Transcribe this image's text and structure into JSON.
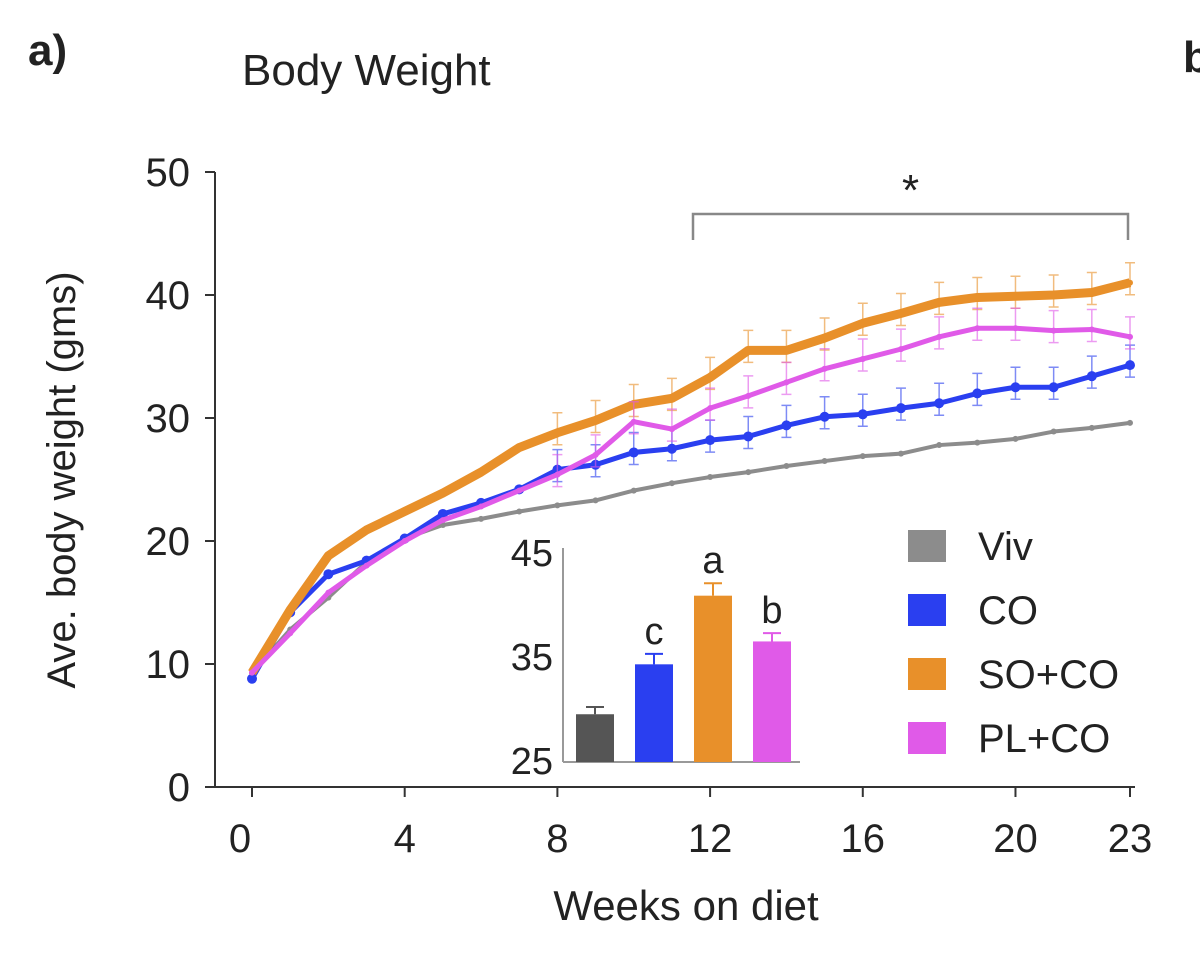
{
  "panel_label": "a)",
  "next_panel_label": "b",
  "chart_data": {
    "type": "line",
    "title": "Body Weight",
    "xlabel": "Weeks on diet",
    "ylabel": "Ave. body weight (gms)",
    "xlim": [
      0,
      23
    ],
    "ylim": [
      0,
      50
    ],
    "xticks": [
      "0",
      "4",
      "8",
      "12",
      "16",
      "20",
      "23"
    ],
    "yticks": [
      "0",
      "10",
      "20",
      "30",
      "40",
      "50"
    ],
    "x": [
      0,
      1,
      2,
      3,
      4,
      5,
      6,
      7,
      8,
      9,
      10,
      11,
      12,
      13,
      14,
      15,
      16,
      17,
      18,
      19,
      20,
      21,
      22,
      23
    ],
    "series": [
      {
        "name": "Viv",
        "color": "#8c8c8c",
        "values": [
          9.3,
          12.8,
          15.4,
          18.3,
          20.2,
          21.3,
          21.8,
          22.4,
          22.9,
          23.3,
          24.1,
          24.7,
          25.2,
          25.6,
          26.1,
          26.5,
          26.9,
          27.1,
          27.8,
          28.0,
          28.3,
          28.9,
          29.2,
          29.6
        ]
      },
      {
        "name": "CO",
        "color": "#2a3ff0",
        "values": [
          8.8,
          14.2,
          17.3,
          18.4,
          20.2,
          22.2,
          23.1,
          24.2,
          25.8,
          26.2,
          27.2,
          27.5,
          28.2,
          28.5,
          29.4,
          30.1,
          30.3,
          30.8,
          31.2,
          32.0,
          32.5,
          32.5,
          33.4,
          34.3
        ]
      },
      {
        "name": "SO+CO",
        "color": "#e8902a",
        "values": [
          9.3,
          14.4,
          18.8,
          20.9,
          22.4,
          23.9,
          25.6,
          27.6,
          28.8,
          29.8,
          31.1,
          31.6,
          33.3,
          35.5,
          35.5,
          36.5,
          37.7,
          38.5,
          39.4,
          39.8,
          39.9,
          40.0,
          40.2,
          41.0
        ]
      },
      {
        "name": "PL+CO",
        "color": "#e05ae8",
        "values": [
          9.3,
          12.5,
          15.8,
          18.0,
          20.0,
          21.7,
          22.8,
          24.1,
          25.4,
          27.0,
          29.7,
          29.1,
          30.8,
          31.8,
          32.9,
          34.0,
          34.8,
          35.6,
          36.6,
          37.3,
          37.3,
          37.1,
          37.2,
          36.6
        ]
      }
    ],
    "legend": [
      "Viv",
      "CO",
      "SO+CO",
      "PL+CO"
    ],
    "legend_placement": "bottom-right",
    "annotation": {
      "text": "*",
      "from_week": 11.5,
      "to_week": 23
    },
    "inset": {
      "type": "bar",
      "categories": [
        "Viv",
        "CO",
        "SO+CO",
        "PL+CO"
      ],
      "values": [
        29.4,
        34.2,
        40.8,
        36.4
      ],
      "errors": [
        0.7,
        1.0,
        1.2,
        0.8
      ],
      "colors": [
        "#555555",
        "#2a3ff0",
        "#e8902a",
        "#e05ae8"
      ],
      "labels": [
        "",
        "c",
        "a",
        "b"
      ],
      "ylim": [
        25,
        45
      ],
      "yticks": [
        "25",
        "35",
        "45"
      ]
    }
  }
}
